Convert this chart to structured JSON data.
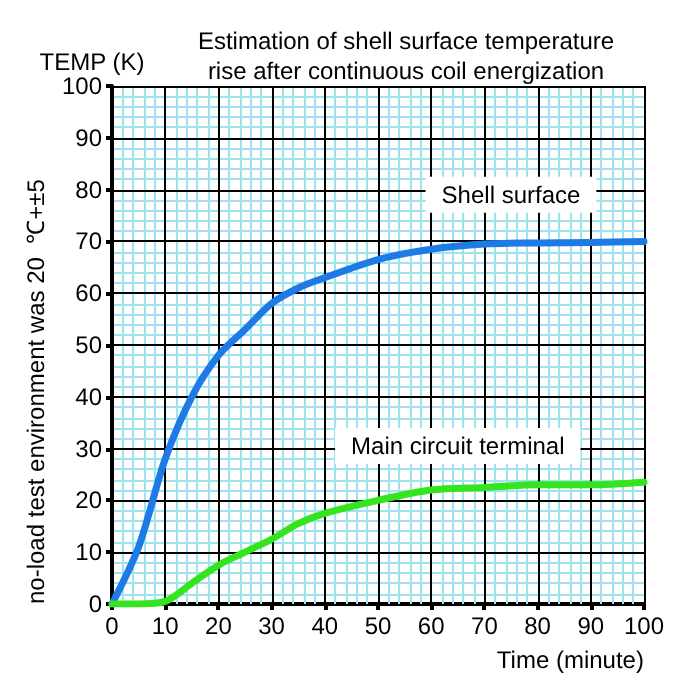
{
  "chart_data": {
    "type": "line",
    "title": "Estimation of shell surface temperature\nrise after continuous coil energization",
    "ylabel": "TEMP (K)",
    "xlabel": "Time (minute)",
    "annotations": [
      "no-load test environment was 20  ℃+±5"
    ],
    "x": [
      0,
      5,
      10,
      15,
      20,
      25,
      30,
      35,
      40,
      50,
      60,
      70,
      80,
      90,
      100
    ],
    "series": [
      {
        "name": "Shell surface",
        "color": "#1e7be6",
        "values": [
          0,
          11,
          28,
          40,
          48,
          53,
          58,
          61,
          63,
          66.5,
          68.5,
          69.5,
          69.7,
          69.8,
          70
        ]
      },
      {
        "name": "Main circuit terminal",
        "color": "#33e41f",
        "values": [
          0,
          0,
          0.5,
          4,
          7.5,
          10,
          12.5,
          15.5,
          17.5,
          20,
          22,
          22.5,
          23,
          23,
          23.5
        ]
      }
    ],
    "xlim": [
      0,
      100
    ],
    "xticks": [
      0,
      {
        "value": 2,
        "label": null
      },
      {
        "value": 4,
        "label": null
      },
      {
        "value": 6,
        "label": null
      },
      {
        "value": 8,
        "label": null
      },
      10,
      {
        "value": 12,
        "label": null
      },
      {
        "value": 14,
        "label": null
      },
      {
        "value": 16,
        "label": null
      },
      {
        "value": 18,
        "label": null
      },
      20,
      {
        "value": 22,
        "label": null
      },
      {
        "value": 24,
        "label": null
      },
      {
        "value": 26,
        "label": null
      },
      {
        "value": 28,
        "label": null
      },
      30,
      {
        "value": 32,
        "label": null
      },
      {
        "value": 34,
        "label": null
      },
      {
        "value": 36,
        "label": null
      },
      {
        "value": 38,
        "label": null
      },
      40,
      {
        "value": 42,
        "label": null
      },
      {
        "value": 44,
        "label": null
      },
      {
        "value": 46,
        "label": null
      },
      {
        "value": 48,
        "label": null
      },
      50,
      {
        "value": 52,
        "label": null
      },
      {
        "value": 54,
        "label": null
      },
      {
        "value": 56,
        "label": null
      },
      {
        "value": 58,
        "label": null
      },
      60,
      {
        "value": 62,
        "label": null
      },
      {
        "value": 64,
        "label": null
      },
      {
        "value": 66,
        "label": null
      },
      {
        "value": 68,
        "label": null
      },
      70,
      {
        "value": 72,
        "label": null
      },
      {
        "value": 74,
        "label": null
      },
      {
        "value": 76,
        "label": null
      },
      {
        "value": 78,
        "label": null
      },
      80,
      {
        "value": 82,
        "label": null
      },
      {
        "value": 84,
        "label": null
      },
      {
        "value": 86,
        "label": null
      },
      {
        "value": 88,
        "label": null
      },
      90,
      {
        "value": 92,
        "label": null
      },
      {
        "value": 94,
        "label": null
      },
      {
        "value": 96,
        "label": null
      },
      {
        "value": 98,
        "label": null
      },
      100
    ],
    "ylim": [
      0,
      100
    ],
    "yticks": [
      0,
      {
        "value": 2,
        "label": null
      },
      {
        "value": 4,
        "label": null
      },
      {
        "value": 6,
        "label": null
      },
      {
        "value": 8,
        "label": null
      },
      10,
      {
        "value": 12,
        "label": null
      },
      {
        "value": 14,
        "label": null
      },
      {
        "value": 16,
        "label": null
      },
      {
        "value": 18,
        "label": null
      },
      20,
      {
        "value": 22,
        "label": null
      },
      {
        "value": 24,
        "label": null
      },
      {
        "value": 26,
        "label": null
      },
      {
        "value": 28,
        "label": null
      },
      30,
      {
        "value": 32,
        "label": null
      },
      {
        "value": 34,
        "label": null
      },
      {
        "value": 36,
        "label": null
      },
      {
        "value": 38,
        "label": null
      },
      40,
      {
        "value": 42,
        "label": null
      },
      {
        "value": 44,
        "label": null
      },
      {
        "value": 46,
        "label": null
      },
      {
        "value": 48,
        "label": null
      },
      50,
      {
        "value": 52,
        "label": null
      },
      {
        "value": 54,
        "label": null
      },
      {
        "value": 56,
        "label": null
      },
      {
        "value": 58,
        "label": null
      },
      60,
      {
        "value": 62,
        "label": null
      },
      {
        "value": 64,
        "label": null
      },
      {
        "value": 66,
        "label": null
      },
      {
        "value": 68,
        "label": null
      },
      70,
      {
        "value": 72,
        "label": null
      },
      {
        "value": 74,
        "label": null
      },
      {
        "value": 76,
        "label": null
      },
      {
        "value": 78,
        "label": null
      },
      80,
      {
        "value": 82,
        "label": null
      },
      {
        "value": 84,
        "label": null
      },
      {
        "value": 86,
        "label": null
      },
      {
        "value": 88,
        "label": null
      },
      90,
      {
        "value": 92,
        "label": null
      },
      {
        "value": 94,
        "label": null
      },
      {
        "value": 96,
        "label": null
      },
      {
        "value": 98,
        "label": null
      },
      100
    ],
    "grid": true,
    "marker": "none",
    "line_style": "solid",
    "legend": false
  }
}
